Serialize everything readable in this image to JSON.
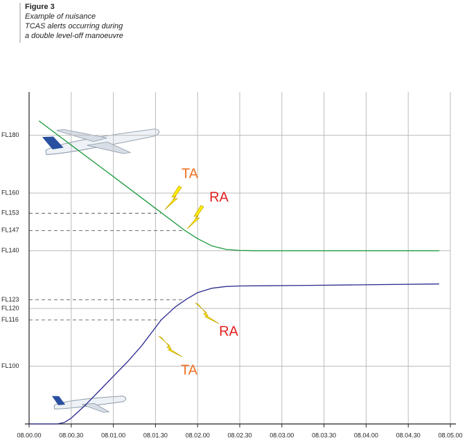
{
  "chart_data": {
    "type": "line",
    "title": "Figure 3",
    "subtitle": [
      "Example of nuisance",
      "TCAS alerts occurring during",
      "a double level-off manoeuvre"
    ],
    "xlim": [
      0,
      300
    ],
    "xticks": [
      {
        "value": 0,
        "label": "08.00.00"
      },
      {
        "value": 30,
        "label": "08.00.30"
      },
      {
        "value": 60,
        "label": "08.01.00"
      },
      {
        "value": 90,
        "label": "08.01.30"
      },
      {
        "value": 120,
        "label": "08.02.00"
      },
      {
        "value": 150,
        "label": "08.02.30"
      },
      {
        "value": 180,
        "label": "08.03.00"
      },
      {
        "value": 210,
        "label": "08.03.30"
      },
      {
        "value": 240,
        "label": "08.04.00"
      },
      {
        "value": 270,
        "label": "08.04.30"
      },
      {
        "value": 300,
        "label": "08.05.00"
      }
    ],
    "ylim": [
      80,
      195
    ],
    "yticks": [
      {
        "value": 180,
        "label": "FL180"
      },
      {
        "value": 160,
        "label": "FL160"
      },
      {
        "value": 140,
        "label": "FL140"
      },
      {
        "value": 120,
        "label": "FL120"
      },
      {
        "value": 100,
        "label": "FL100"
      }
    ],
    "alert_levels": [
      {
        "value": 153,
        "label": "FL153"
      },
      {
        "value": 147,
        "label": "FL147"
      },
      {
        "value": 123,
        "label": "FL123"
      },
      {
        "value": 116,
        "label": "FL116"
      }
    ],
    "grid": true,
    "series": [
      {
        "color": "#1a9a3c",
        "x": [
          7,
          30,
          60,
          93,
          111,
          120,
          130,
          140,
          150,
          160,
          292
        ],
        "values": [
          185,
          176.6,
          165.7,
          153.6,
          147,
          144.2,
          141.7,
          140.5,
          140.1,
          140,
          140
        ]
      },
      {
        "color": "#2a2a8f",
        "x": [
          0,
          20,
          25,
          30,
          40,
          50,
          60,
          70,
          80,
          94,
          104,
          112,
          120,
          130,
          140,
          150,
          200,
          292
        ],
        "values": [
          80,
          80,
          80.5,
          82,
          86.5,
          91.5,
          96.5,
          101.5,
          107,
          116,
          120.5,
          123.2,
          125.5,
          127,
          127.6,
          127.8,
          128,
          128.5
        ]
      }
    ],
    "annotations": [
      {
        "text": "TA",
        "color": "#f07020"
      },
      {
        "text": "RA",
        "color": "#e02020"
      },
      {
        "text": "RA",
        "color": "#e02020"
      },
      {
        "text": "TA",
        "color": "#f07020"
      }
    ]
  }
}
